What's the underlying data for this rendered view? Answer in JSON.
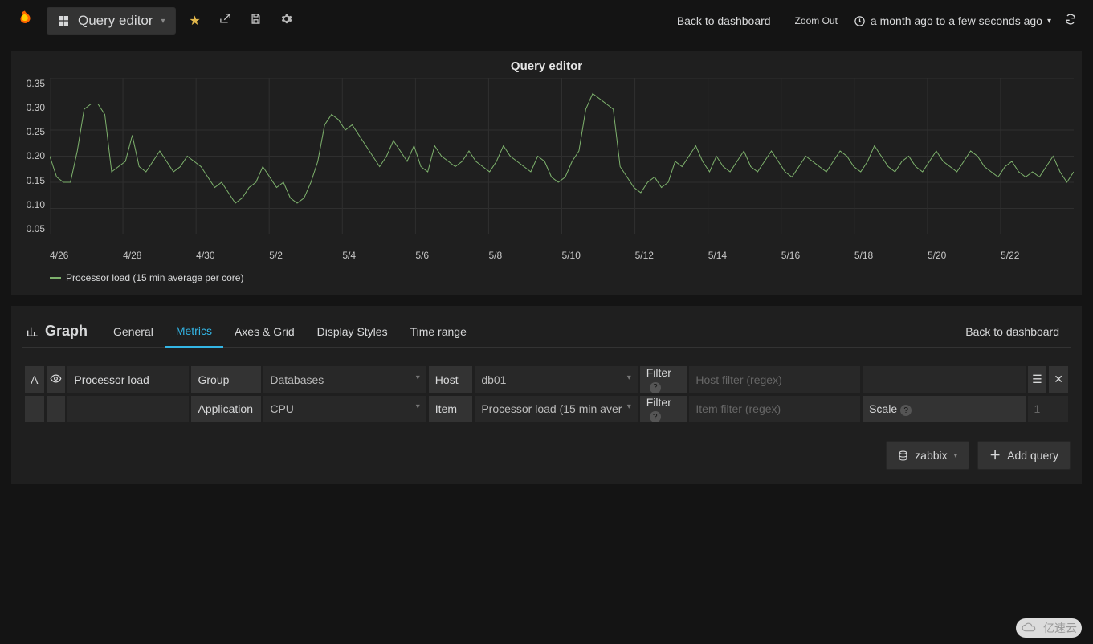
{
  "topbar": {
    "dashboard_label": "Query editor",
    "back_link": "Back to dashboard",
    "zoom_out": "Zoom Out",
    "time_range": "a month ago to a few seconds ago",
    "icons": [
      "star",
      "share",
      "save",
      "settings",
      "refresh"
    ]
  },
  "panel": {
    "title": "Query editor",
    "chart": {
      "type": "line",
      "series_label": "Processor load (15 min average per core)",
      "line_color": "#7eb26d",
      "line_width": 1,
      "background_color": "#1f1f1f",
      "grid_color": "#2f2f2f",
      "ylim": [
        0.05,
        0.35
      ],
      "ytick_step": 0.05,
      "yticks": [
        "0.35",
        "0.30",
        "0.25",
        "0.20",
        "0.15",
        "0.10",
        "0.05"
      ],
      "xticks": [
        "4/26",
        "4/28",
        "4/30",
        "5/2",
        "5/4",
        "5/6",
        "5/8",
        "5/10",
        "5/12",
        "5/14",
        "5/16",
        "5/18",
        "5/20",
        "5/22"
      ],
      "y": [
        0.2,
        0.16,
        0.15,
        0.15,
        0.21,
        0.29,
        0.3,
        0.3,
        0.28,
        0.17,
        0.18,
        0.19,
        0.24,
        0.18,
        0.17,
        0.19,
        0.21,
        0.19,
        0.17,
        0.18,
        0.2,
        0.19,
        0.18,
        0.16,
        0.14,
        0.15,
        0.13,
        0.11,
        0.12,
        0.14,
        0.15,
        0.18,
        0.16,
        0.14,
        0.15,
        0.12,
        0.11,
        0.12,
        0.15,
        0.19,
        0.26,
        0.28,
        0.27,
        0.25,
        0.26,
        0.24,
        0.22,
        0.2,
        0.18,
        0.2,
        0.23,
        0.21,
        0.19,
        0.22,
        0.18,
        0.17,
        0.22,
        0.2,
        0.19,
        0.18,
        0.19,
        0.21,
        0.19,
        0.18,
        0.17,
        0.19,
        0.22,
        0.2,
        0.19,
        0.18,
        0.17,
        0.2,
        0.19,
        0.16,
        0.15,
        0.16,
        0.19,
        0.21,
        0.29,
        0.32,
        0.31,
        0.3,
        0.29,
        0.18,
        0.16,
        0.14,
        0.13,
        0.15,
        0.16,
        0.14,
        0.15,
        0.19,
        0.18,
        0.2,
        0.22,
        0.19,
        0.17,
        0.2,
        0.18,
        0.17,
        0.19,
        0.21,
        0.18,
        0.17,
        0.19,
        0.21,
        0.19,
        0.17,
        0.16,
        0.18,
        0.2,
        0.19,
        0.18,
        0.17,
        0.19,
        0.21,
        0.2,
        0.18,
        0.17,
        0.19,
        0.22,
        0.2,
        0.18,
        0.17,
        0.19,
        0.2,
        0.18,
        0.17,
        0.19,
        0.21,
        0.19,
        0.18,
        0.17,
        0.19,
        0.21,
        0.2,
        0.18,
        0.17,
        0.16,
        0.18,
        0.19,
        0.17,
        0.16,
        0.17,
        0.16,
        0.18,
        0.2,
        0.17,
        0.15,
        0.17
      ]
    }
  },
  "editor": {
    "graph_label": "Graph",
    "tabs": [
      "General",
      "Metrics",
      "Axes & Grid",
      "Display Styles",
      "Time range"
    ],
    "active_tab": "Metrics",
    "back_link": "Back to dashboard",
    "query": {
      "ref": "A",
      "alias": "Processor load",
      "group_label": "Group",
      "group_value": "Databases",
      "host_label": "Host",
      "host_value": "db01",
      "filter_label": "Filter",
      "host_filter_placeholder": "Host filter (regex)",
      "app_label": "Application",
      "app_value": "CPU",
      "item_label": "Item",
      "item_value": "Processor load (15 min aver",
      "item_filter_placeholder": "Item filter (regex)",
      "scale_label": "Scale",
      "scale_placeholder": "1"
    },
    "actions": {
      "datasource": "zabbix",
      "add_query": "Add query"
    }
  },
  "watermark": "亿速云",
  "colors": {
    "bg": "#141414",
    "panel": "#1f1f1f",
    "cell": "#282828",
    "cell_label": "#333333",
    "text": "#d8d9da",
    "accent": "#33b5e5",
    "series": "#7eb26d",
    "star": "#e3b84b"
  }
}
